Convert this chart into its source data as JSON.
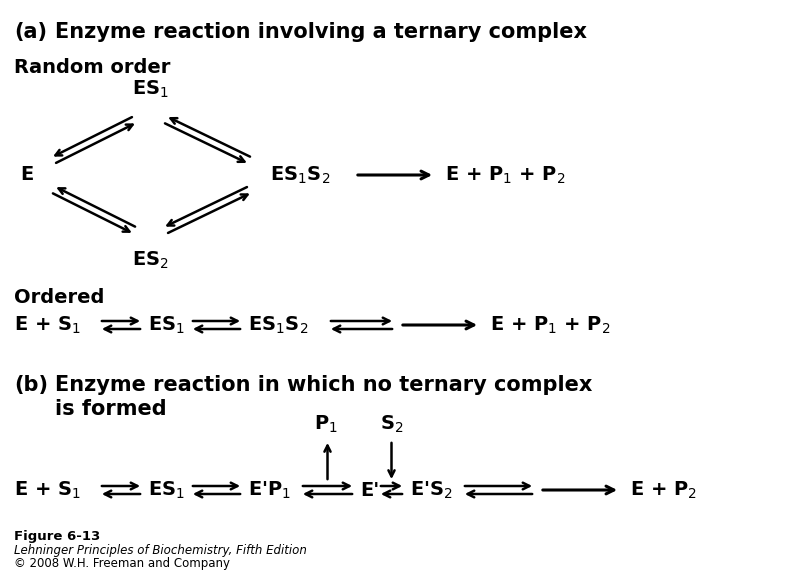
{
  "bg_color": "#ffffff",
  "figure_label": "Figure 6-13",
  "figure_ref1": "Lehninger Principles of Biochemistry, Fifth Edition",
  "figure_ref2": "© 2008 W.H. Freeman and Company",
  "title_fontsize": 15,
  "label_fontsize": 14,
  "small_fontsize": 8.5,
  "subtext_fontsize": 10
}
